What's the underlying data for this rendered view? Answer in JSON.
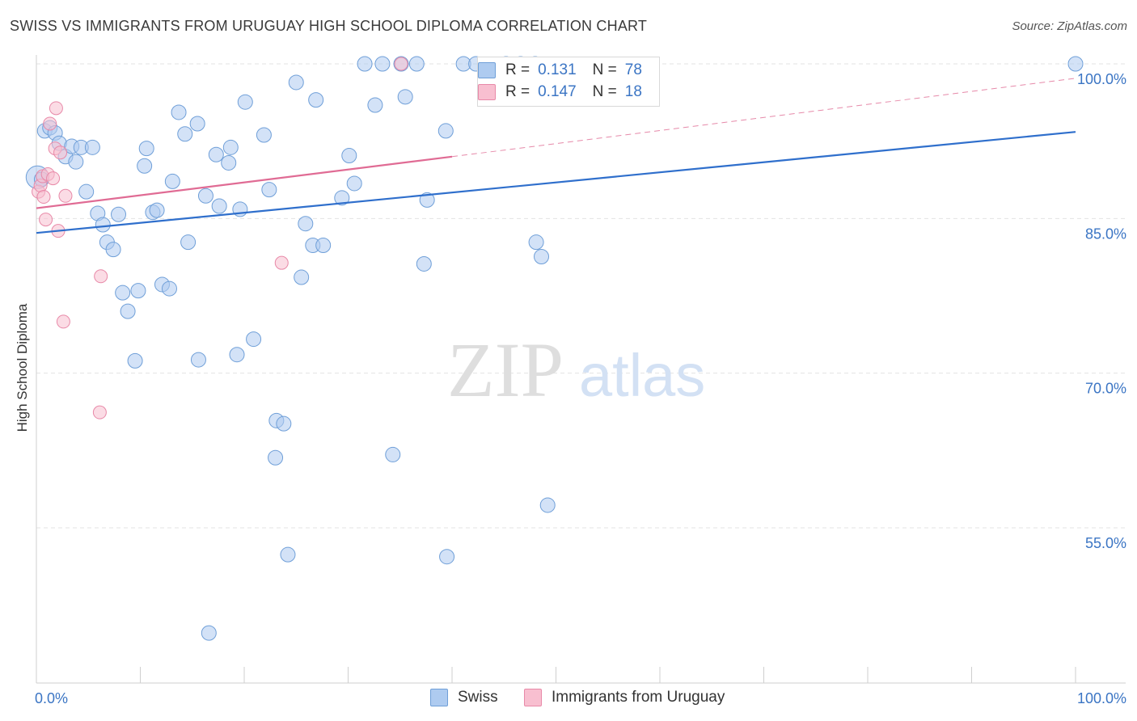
{
  "header": {
    "title": "SWISS VS IMMIGRANTS FROM URUGUAY HIGH SCHOOL DIPLOMA CORRELATION CHART",
    "source": "Source: ZipAtlas.com"
  },
  "watermark": {
    "zip": "ZIP",
    "atlas": "atlas"
  },
  "legend": {
    "swiss": {
      "r_label": "R =",
      "r_value": "0.131",
      "n_label": "N =",
      "n_value": "78"
    },
    "uruguay": {
      "r_label": "R =",
      "r_value": "0.147",
      "n_label": "N =",
      "n_value": "18"
    }
  },
  "bottom_legend": {
    "swiss": "Swiss",
    "uruguay": "Immigrants from Uruguay"
  },
  "colors": {
    "swiss_fill": "#aecbf0",
    "swiss_stroke": "#6f9fd8",
    "swiss_line": "#2f6fcc",
    "uruguay_fill": "#f8bfd0",
    "uruguay_stroke": "#e889a8",
    "uruguay_line": "#e06b94",
    "tick_label": "#3b75c4",
    "grid": "#e3e3e3"
  },
  "chart_data": {
    "type": "scatter",
    "title": "SWISS VS IMMIGRANTS FROM URUGUAY HIGH SCHOOL DIPLOMA CORRELATION CHART",
    "xlabel": "",
    "ylabel": "High School Diploma",
    "xlim": [
      0,
      100
    ],
    "ylim": [
      40,
      101
    ],
    "x_tick_labels": [
      "0.0%",
      "100.0%"
    ],
    "y_ticks": [
      55,
      70,
      85,
      100
    ],
    "y_tick_labels": [
      "55.0%",
      "70.0%",
      "85.0%",
      "100.0%"
    ],
    "grid": true,
    "legend_position": "top-center",
    "series": [
      {
        "name": "Swiss",
        "r": 0.131,
        "n": 78,
        "trend": {
          "x": [
            0,
            100
          ],
          "y": [
            83.6,
            93.4
          ]
        },
        "points": [
          [
            0.1,
            89.0
          ],
          [
            0.5,
            88.8
          ],
          [
            0.8,
            93.5
          ],
          [
            1.3,
            93.8
          ],
          [
            1.8,
            93.3
          ],
          [
            2.2,
            92.3
          ],
          [
            2.8,
            91.0
          ],
          [
            3.4,
            92.0
          ],
          [
            3.8,
            90.5
          ],
          [
            4.3,
            91.9
          ],
          [
            4.8,
            87.6
          ],
          [
            5.4,
            91.9
          ],
          [
            5.9,
            85.5
          ],
          [
            6.4,
            84.4
          ],
          [
            6.8,
            82.7
          ],
          [
            7.4,
            82.0
          ],
          [
            7.9,
            85.4
          ],
          [
            8.3,
            77.8
          ],
          [
            8.8,
            76.0
          ],
          [
            9.5,
            71.2
          ],
          [
            9.8,
            78.0
          ],
          [
            10.4,
            90.1
          ],
          [
            10.6,
            91.8
          ],
          [
            11.2,
            85.6
          ],
          [
            11.6,
            85.8
          ],
          [
            12.1,
            78.6
          ],
          [
            12.8,
            78.2
          ],
          [
            13.1,
            88.6
          ],
          [
            13.7,
            95.3
          ],
          [
            14.3,
            93.2
          ],
          [
            14.6,
            82.7
          ],
          [
            15.5,
            94.2
          ],
          [
            15.6,
            71.3
          ],
          [
            16.3,
            87.2
          ],
          [
            16.6,
            44.8
          ],
          [
            17.3,
            91.2
          ],
          [
            17.6,
            86.2
          ],
          [
            18.5,
            90.4
          ],
          [
            18.7,
            91.9
          ],
          [
            19.3,
            71.8
          ],
          [
            19.6,
            85.9
          ],
          [
            20.1,
            96.3
          ],
          [
            20.9,
            73.3
          ],
          [
            21.9,
            93.1
          ],
          [
            22.4,
            87.8
          ],
          [
            23.0,
            61.8
          ],
          [
            23.1,
            65.4
          ],
          [
            23.8,
            65.1
          ],
          [
            24.2,
            52.4
          ],
          [
            25.0,
            98.2
          ],
          [
            25.5,
            79.3
          ],
          [
            25.9,
            84.5
          ],
          [
            26.6,
            82.4
          ],
          [
            26.9,
            96.5
          ],
          [
            27.6,
            82.4
          ],
          [
            29.4,
            87.0
          ],
          [
            30.1,
            91.1
          ],
          [
            30.6,
            88.4
          ],
          [
            31.6,
            100.0
          ],
          [
            32.6,
            96.0
          ],
          [
            33.3,
            100.0
          ],
          [
            34.3,
            62.1
          ],
          [
            35.1,
            100.0
          ],
          [
            35.5,
            96.8
          ],
          [
            36.6,
            100.0
          ],
          [
            37.3,
            80.6
          ],
          [
            37.6,
            86.8
          ],
          [
            39.4,
            93.5
          ],
          [
            39.5,
            52.2
          ],
          [
            41.1,
            100.0
          ],
          [
            42.3,
            100.0
          ],
          [
            45.2,
            100.0
          ],
          [
            46.6,
            100.0
          ],
          [
            48.0,
            100.0
          ],
          [
            48.1,
            82.7
          ],
          [
            48.6,
            81.3
          ],
          [
            49.2,
            57.2
          ],
          [
            100.0,
            100.0
          ]
        ]
      },
      {
        "name": "Immigrants from Uruguay",
        "r": 0.147,
        "n": 18,
        "trend": {
          "x": [
            0,
            40
          ],
          "y": [
            86.0,
            91.0
          ]
        },
        "trend_extension": {
          "x": [
            40,
            100
          ],
          "y": [
            91.0,
            98.6
          ]
        },
        "points": [
          [
            0.2,
            87.6
          ],
          [
            0.4,
            88.2
          ],
          [
            0.6,
            89.1
          ],
          [
            0.7,
            87.1
          ],
          [
            0.9,
            84.9
          ],
          [
            1.1,
            89.3
          ],
          [
            1.3,
            94.2
          ],
          [
            1.6,
            88.9
          ],
          [
            1.8,
            91.8
          ],
          [
            1.9,
            95.7
          ],
          [
            2.1,
            83.8
          ],
          [
            2.3,
            91.4
          ],
          [
            2.6,
            75.0
          ],
          [
            2.8,
            87.2
          ],
          [
            6.1,
            66.2
          ],
          [
            6.2,
            79.4
          ],
          [
            23.6,
            80.7
          ],
          [
            35.1,
            100.0
          ]
        ]
      }
    ]
  }
}
